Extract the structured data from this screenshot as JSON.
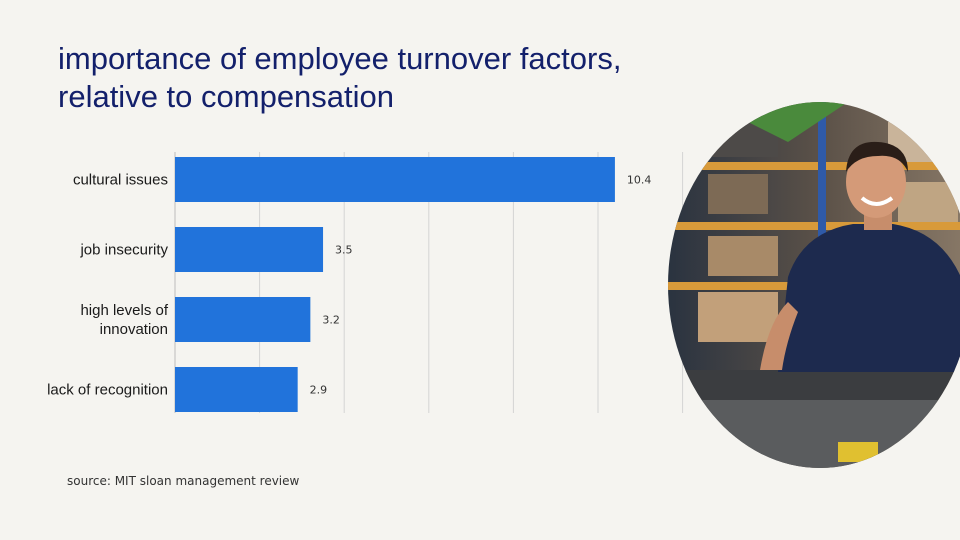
{
  "slide": {
    "title_line1": "importance of employee turnover factors,",
    "title_line2": "relative to compensation",
    "source": "source: MIT sloan management review"
  },
  "photo": {
    "subject": "person-icon"
  },
  "colors": {
    "bar": "#2173db",
    "title": "#13206b",
    "grid": "#d4d4d4",
    "background": "#f5f4f0"
  },
  "chart_data": {
    "type": "bar",
    "orientation": "horizontal",
    "categories": [
      "cultural issues",
      "job insecurity",
      "high levels of innovation",
      "lack of recognition"
    ],
    "category_lines": [
      [
        "cultural issues"
      ],
      [
        "job insecurity"
      ],
      [
        "high levels of",
        "innovation"
      ],
      [
        "lack of recognition"
      ]
    ],
    "values": [
      10.4,
      3.5,
      3.2,
      2.9
    ],
    "labels": [
      "10.4",
      "3.5",
      "3.2",
      "2.9"
    ],
    "xlim": [
      0,
      12
    ],
    "grid": true
  }
}
